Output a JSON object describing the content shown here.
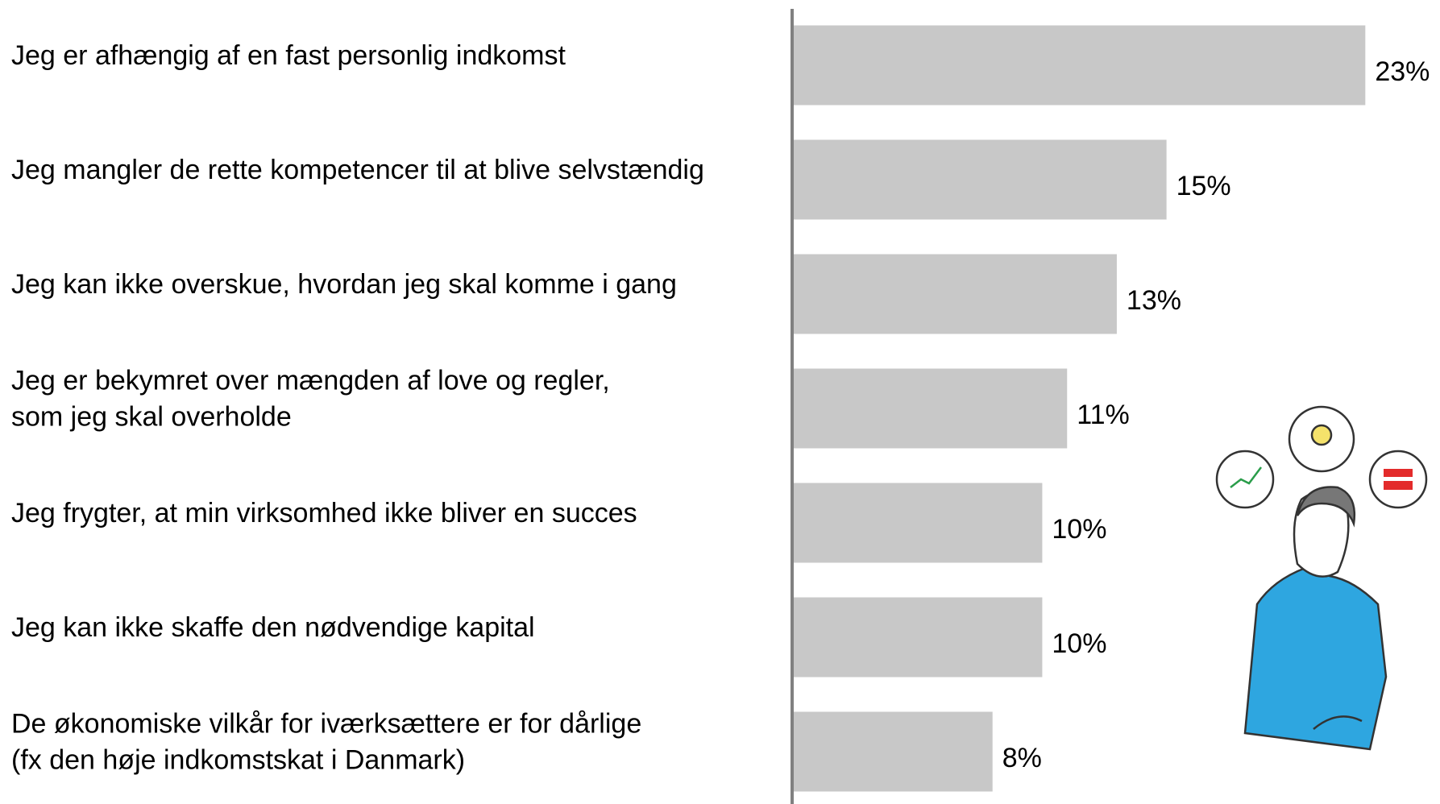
{
  "chart_data": {
    "type": "bar",
    "orientation": "horizontal",
    "categories": [
      [
        "Jeg er afhængig af en fast personlig indkomst"
      ],
      [
        "Jeg mangler de rette kompetencer til at blive selvstændig"
      ],
      [
        "Jeg kan ikke overskue, hvordan jeg skal komme i gang"
      ],
      [
        "Jeg er bekymret over mængden af love og regler,",
        "som jeg skal overholde"
      ],
      [
        "Jeg frygter, at min virksomhed ikke bliver en succes"
      ],
      [
        "Jeg kan ikke skaffe den nødvendige kapital"
      ],
      [
        "De økonomiske vilkår for iværksættere er for dårlige",
        "(fx den høje indkomstskat i Danmark)"
      ]
    ],
    "values": [
      23,
      15,
      13,
      11,
      10,
      10,
      8
    ],
    "value_labels": [
      "23%",
      "15%",
      "13%",
      "11%",
      "10%",
      "10%",
      "8%"
    ],
    "color": "#c8c8c8",
    "xlim": [
      0,
      25
    ]
  }
}
